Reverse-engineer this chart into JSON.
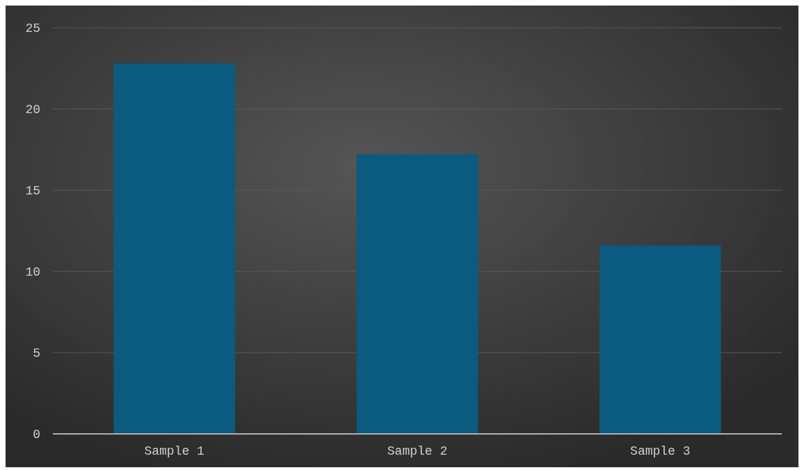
{
  "chart_data": {
    "type": "bar",
    "categories": [
      "Sample 1",
      "Sample 2",
      "Sample 3"
    ],
    "values": [
      22.8,
      17.2,
      11.6
    ],
    "color": "#0b5a80",
    "ylim": [
      0,
      25
    ],
    "yticks": [
      0,
      5,
      10,
      15,
      20,
      25
    ],
    "grid": "y"
  }
}
